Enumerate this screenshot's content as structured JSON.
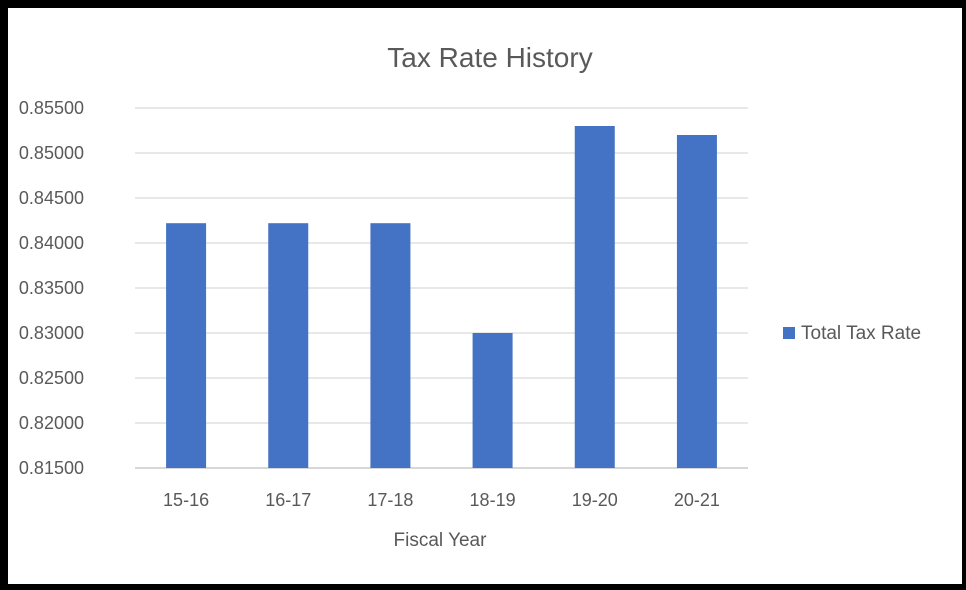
{
  "chart_data": {
    "type": "bar",
    "title": "Tax Rate History",
    "xlabel": "Fiscal Year",
    "ylabel": "",
    "categories": [
      "15-16",
      "16-17",
      "17-18",
      "18-19",
      "19-20",
      "20-21"
    ],
    "series": [
      {
        "name": "Total Tax Rate",
        "color": "#4472c4",
        "values": [
          0.8422,
          0.8422,
          0.8422,
          0.83,
          0.853,
          0.852
        ]
      }
    ],
    "ylim": [
      0.815,
      0.855
    ],
    "yticks": [
      "0.81500",
      "0.82000",
      "0.82500",
      "0.83000",
      "0.83500",
      "0.84000",
      "0.84500",
      "0.85000",
      "0.85500"
    ],
    "grid": true,
    "legend_position": "right"
  }
}
